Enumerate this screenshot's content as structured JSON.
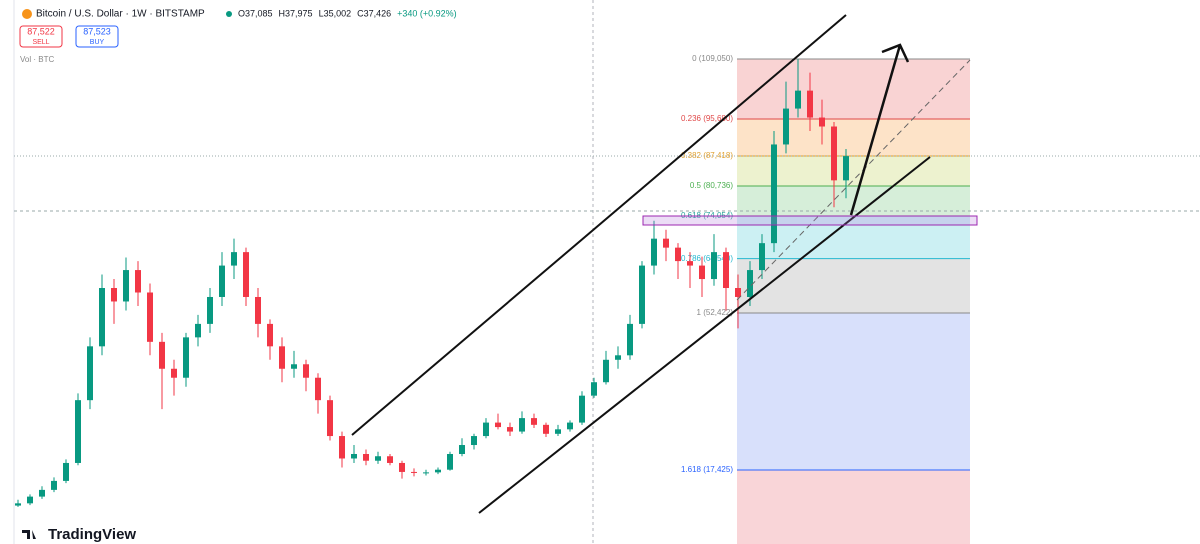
{
  "chart_data": {
    "type": "candlestick",
    "title": "Bitcoin / U.S. Dollar · 1W · BITSTAMP",
    "ohlc": [
      "O37,085",
      "H37,975",
      "L35,002",
      "C37,426",
      "+340 (+0.92%)"
    ],
    "sell": {
      "price": "87,522",
      "label": "SELL"
    },
    "buy": {
      "price": "87,523",
      "label": "BUY"
    },
    "volume_label": "Vol · BTC",
    "brand": "TradingView",
    "up_color": "#089981",
    "down_color": "#f23645",
    "ylim": [
      936,
      122202
    ],
    "open": [
      9500,
      10000,
      11500,
      13000,
      15000,
      19000,
      33000,
      45000,
      58000,
      55000,
      62000,
      57000,
      46000,
      40000,
      38000,
      47000,
      50000,
      56000,
      63000,
      66000,
      56000,
      50000,
      45000,
      40000,
      41000,
      38000,
      33000,
      25000,
      20000,
      21000,
      19500,
      20500,
      19000,
      17000,
      16800,
      16900,
      17500,
      21000,
      23000,
      25000,
      28000,
      27000,
      26000,
      29000,
      27500,
      25500,
      26500,
      28000,
      34000,
      37000,
      42000,
      43000,
      50000,
      63000,
      69000,
      67000,
      64000,
      63000,
      60000,
      66000,
      58000,
      56000,
      62000,
      68000,
      90000,
      98000,
      102000,
      96000,
      94000,
      82000
    ],
    "high": [
      10800,
      12000,
      13800,
      15800,
      19800,
      34500,
      47000,
      61000,
      60000,
      64800,
      64000,
      59000,
      48000,
      42000,
      48000,
      52000,
      58000,
      66000,
      69000,
      67000,
      58000,
      51000,
      47000,
      44000,
      42000,
      39000,
      34000,
      26000,
      23000,
      22000,
      21500,
      21000,
      19500,
      17800,
      17500,
      18000,
      21500,
      24500,
      25500,
      29000,
      30000,
      28000,
      30500,
      30000,
      28000,
      27500,
      28500,
      35000,
      38000,
      44000,
      45000,
      52000,
      64000,
      73000,
      71000,
      68000,
      66000,
      65000,
      70000,
      67000,
      61000,
      64000,
      70000,
      93000,
      104000,
      109000,
      106000,
      100000,
      95000,
      89000
    ],
    "low": [
      9200,
      9600,
      11000,
      12500,
      14500,
      18500,
      31000,
      43000,
      50000,
      53000,
      54000,
      43000,
      31000,
      34000,
      36000,
      45000,
      48000,
      54000,
      60000,
      54000,
      47000,
      42000,
      37000,
      38000,
      35000,
      30000,
      24000,
      18000,
      19000,
      18500,
      18800,
      18500,
      15500,
      16000,
      16200,
      16500,
      17300,
      20500,
      22000,
      24500,
      26500,
      25000,
      25500,
      26800,
      24800,
      25000,
      26000,
      27500,
      33500,
      36500,
      40000,
      42000,
      49000,
      61000,
      64000,
      60000,
      58000,
      56000,
      58500,
      53000,
      49000,
      54000,
      60000,
      66000,
      88000,
      96000,
      93000,
      90000,
      76000,
      78000
    ],
    "close": [
      10000,
      11500,
      13000,
      15000,
      19000,
      33000,
      45000,
      58000,
      55000,
      62000,
      57000,
      46000,
      40000,
      38000,
      47000,
      50000,
      56000,
      63000,
      66000,
      56000,
      50000,
      45000,
      40000,
      41000,
      38000,
      33000,
      25000,
      20000,
      21000,
      19500,
      20500,
      19000,
      17000,
      16800,
      16900,
      17500,
      21000,
      23000,
      25000,
      28000,
      27000,
      26000,
      29000,
      27500,
      25500,
      26500,
      28000,
      34000,
      37000,
      42000,
      43000,
      50000,
      63000,
      69000,
      67000,
      64000,
      63000,
      60000,
      66000,
      58000,
      56000,
      62000,
      68000,
      90000,
      98000,
      102000,
      96000,
      94000,
      82000,
      87400
    ],
    "fib_levels": [
      {
        "value": 109050,
        "label": "0 (109,050)"
      },
      {
        "value": 95680,
        "label": "0.236 (95,680)"
      },
      {
        "value": 87418,
        "label": "0.382 (87,418)"
      },
      {
        "value": 80736,
        "label": "0.5 (80,736)"
      },
      {
        "value": 74054,
        "label": "0.618 (74,054)"
      },
      {
        "value": 64540,
        "label": "0.786 (64,540)"
      },
      {
        "value": 52422,
        "label": "1 (52,422)"
      },
      {
        "value": 17425,
        "label": "1.618 (17,425)"
      }
    ]
  }
}
